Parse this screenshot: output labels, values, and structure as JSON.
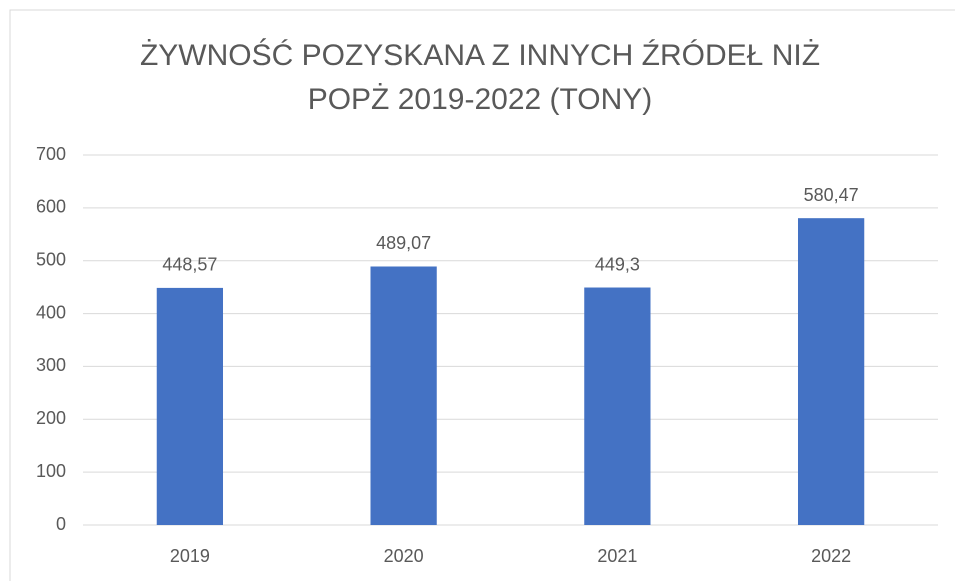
{
  "chart_data": {
    "type": "bar",
    "title": "ŻYWNOŚĆ POZYSKANA Z INNYCH ŹRÓDEŁ NIŻ POPŻ 2019-2022 (TONY)",
    "categories": [
      "2019",
      "2020",
      "2021",
      "2022"
    ],
    "values": [
      448.57,
      489.07,
      449.3,
      580.47
    ],
    "value_labels": [
      "448,57",
      "489,07",
      "449,3",
      "580,47"
    ],
    "color": "#4472c4",
    "ylim": [
      0,
      700
    ],
    "yticks": [
      0,
      100,
      200,
      300,
      400,
      500,
      600,
      700
    ],
    "grid": true
  }
}
